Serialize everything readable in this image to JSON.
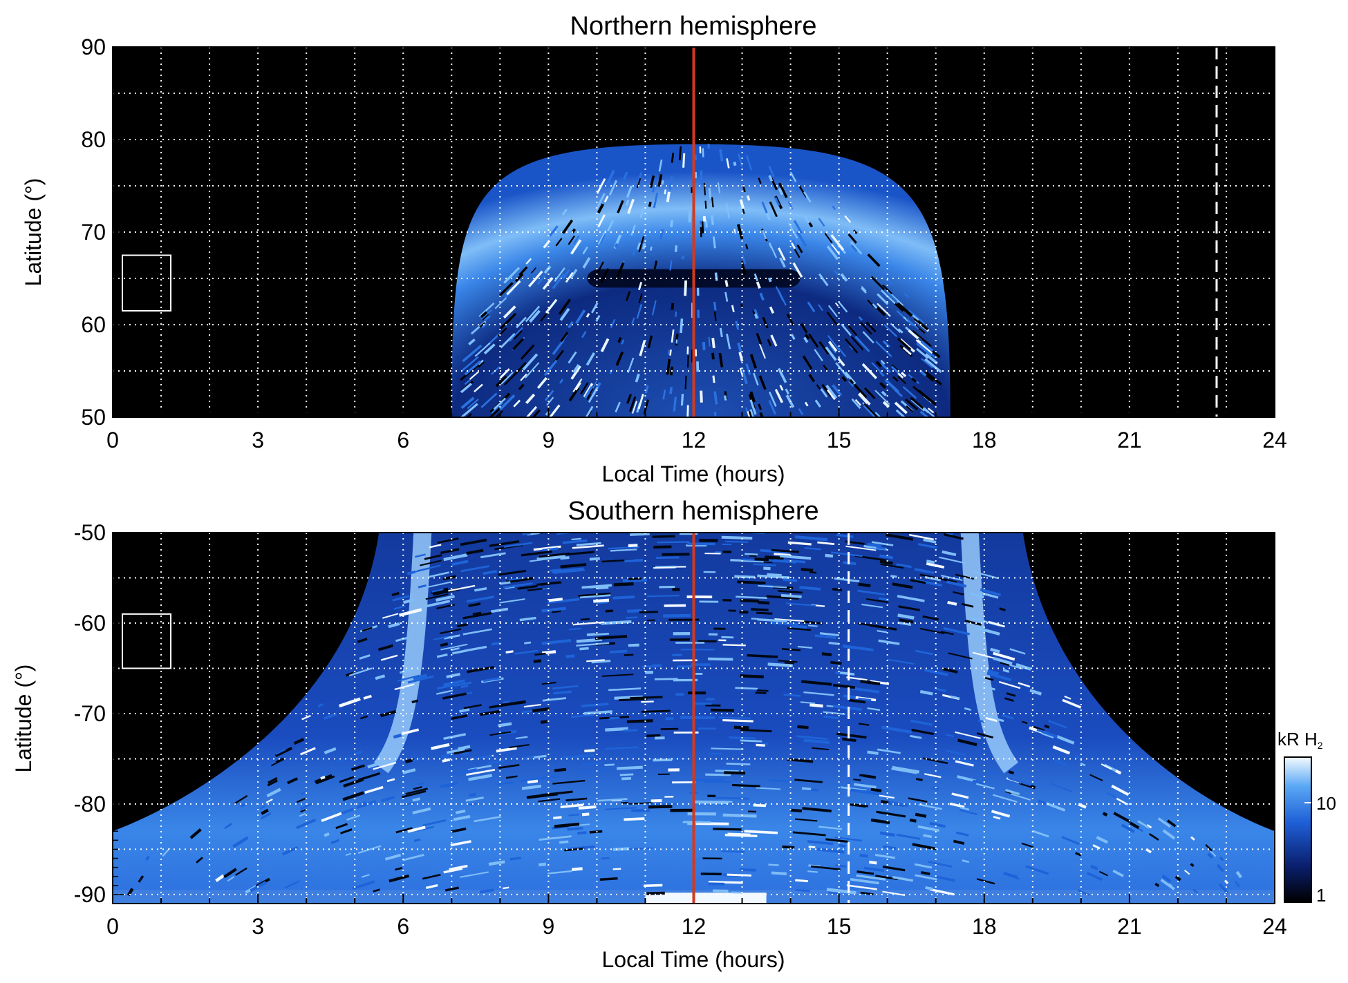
{
  "chart_data": [
    {
      "type": "heatmap",
      "title": "Northern hemisphere",
      "xlabel": "Local Time (hours)",
      "ylabel": "Latitude (°)",
      "xlim": [
        0,
        24
      ],
      "ylim": [
        50,
        90
      ],
      "xticks": [
        0,
        3,
        6,
        9,
        12,
        15,
        18,
        21,
        24
      ],
      "yticks": [
        50,
        60,
        70,
        80,
        90
      ],
      "grid": true,
      "background": "#000000",
      "emission_region": {
        "lt_start": 7.0,
        "lt_end": 17.3,
        "lat_max": 79.5
      },
      "bright_oval_lat": 68,
      "dark_gap_lat": [
        64,
        66
      ],
      "noon_line_lt": 12,
      "noon_line_color": "#d13a1e",
      "dashed_line_lt": 22.8,
      "reference_box": {
        "lt": [
          0.2,
          1.2
        ],
        "lat": [
          61.5,
          67.5
        ]
      }
    },
    {
      "type": "heatmap",
      "title": "Southern hemisphere",
      "xlabel": "Local Time (hours)",
      "ylabel": "Latitude (°)",
      "xlim": [
        0,
        24
      ],
      "ylim": [
        -91,
        -50
      ],
      "xticks": [
        0,
        3,
        6,
        9,
        12,
        15,
        18,
        21,
        24
      ],
      "yticks": [
        -90,
        -80,
        -70,
        -60,
        -50
      ],
      "grid": true,
      "background": "#000000",
      "emission_region": {
        "lt_start_top": 5.5,
        "lt_end_top": 18.8,
        "lt_start_bottom": 0,
        "lt_end_bottom": 24
      },
      "bright_arc_lt": [
        6.4,
        17.7
      ],
      "noon_line_lt": 12,
      "noon_line_color": "#d13a1e",
      "dashed_line_lt": 15.2,
      "reference_box": {
        "lt": [
          0.2,
          1.2
        ],
        "lat": [
          -59,
          -65
        ]
      }
    }
  ],
  "colorbar": {
    "label_main": "kR H",
    "label_sub": "2",
    "tick_labels": [
      "10",
      "1"
    ],
    "scale": "log",
    "range": [
      1,
      20
    ],
    "colors": [
      "#000000",
      "#0a1f6e",
      "#1f5fd6",
      "#5aa8f5",
      "#f4faff"
    ]
  }
}
